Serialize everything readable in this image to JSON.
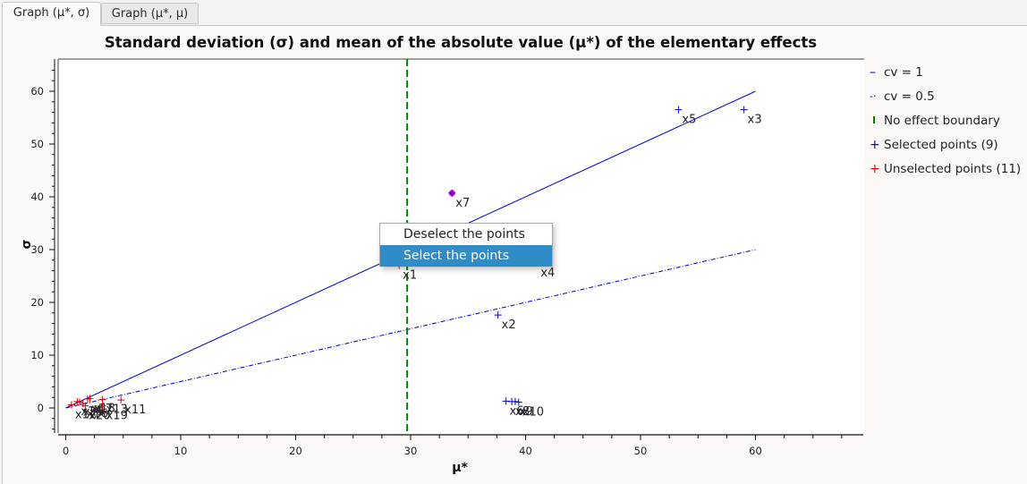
{
  "tabs": [
    {
      "label": "Graph (μ*, σ)",
      "active": true
    },
    {
      "label": "Graph (μ*, μ)",
      "active": false
    }
  ],
  "context_menu": {
    "items": [
      {
        "label": "Deselect the points",
        "highlighted": false
      },
      {
        "label": "Select the points",
        "highlighted": true
      }
    ]
  },
  "legend": [
    {
      "symbol": "–",
      "label": "cv = 1",
      "color": "#0000cc"
    },
    {
      "symbol": "-·",
      "label": "cv = 0.5",
      "color": "#0000cc"
    },
    {
      "symbol": "I",
      "label": "No effect boundary",
      "color": "#008000"
    },
    {
      "symbol": "+",
      "label": "Selected points (9)",
      "color": "#0000cc"
    },
    {
      "symbol": "+",
      "label": "Unselected points (11)",
      "color": "#dd0000"
    }
  ],
  "colors": {
    "selected": "#0000cc",
    "unselected": "#dd0000",
    "boundary": "#008000",
    "highlight": "#dd00dd",
    "menu_highlight": "#308cc6"
  },
  "chart_data": {
    "type": "scatter",
    "title": "Standard deviation (σ) and mean of the absolute value (μ*) of the elementary effects",
    "xlabel": "μ*",
    "ylabel": "σ",
    "xlim": [
      -1,
      69
    ],
    "ylim": [
      -5,
      66
    ],
    "xticks": [
      0,
      10,
      20,
      30,
      40,
      50,
      60
    ],
    "yticks": [
      0,
      10,
      20,
      30,
      40,
      50,
      60
    ],
    "lines": [
      {
        "name": "cv = 1",
        "x": [
          0,
          60
        ],
        "y": [
          0,
          60
        ],
        "style": "solid"
      },
      {
        "name": "cv = 0.5",
        "x": [
          0,
          60
        ],
        "y": [
          0,
          30
        ],
        "style": "dashdot"
      },
      {
        "name": "No effect boundary",
        "x": [
          29.7,
          29.7
        ],
        "y": [
          -5,
          66
        ],
        "style": "dashed"
      }
    ],
    "series": [
      {
        "name": "Selected points (9)",
        "points": [
          {
            "label": "x5",
            "x": 53.3,
            "y": 56.5
          },
          {
            "label": "x3",
            "x": 59.0,
            "y": 56.5
          },
          {
            "label": "x7",
            "x": 33.6,
            "y": 40.7
          },
          {
            "label": "x4",
            "x": 41.0,
            "y": 27.5
          },
          {
            "label": "x2",
            "x": 37.6,
            "y": 17.6
          },
          {
            "label": "x6",
            "x": 38.3,
            "y": 1.3
          },
          {
            "label": "x8",
            "x": 38.8,
            "y": 1.2
          },
          {
            "label": "x9",
            "x": 39.1,
            "y": 1.2
          },
          {
            "label": "x10",
            "x": 39.4,
            "y": 1.1
          }
        ]
      },
      {
        "name": "Unselected points (11)",
        "points": [
          {
            "label": "x1",
            "x": 29.0,
            "y": 27.0
          },
          {
            "label": "x11",
            "x": 4.8,
            "y": 1.5
          },
          {
            "label": "x12",
            "x": 0.5,
            "y": 0.6
          },
          {
            "label": "x13",
            "x": 3.2,
            "y": 1.6
          },
          {
            "label": "x14",
            "x": 1.0,
            "y": 1.2
          },
          {
            "label": "x15",
            "x": 1.2,
            "y": 1.1
          },
          {
            "label": "x16",
            "x": 1.5,
            "y": 0.8
          },
          {
            "label": "x17",
            "x": 1.9,
            "y": 1.7
          },
          {
            "label": "x18",
            "x": 2.1,
            "y": 1.8
          },
          {
            "label": "x19",
            "x": 3.2,
            "y": 0.4
          },
          {
            "label": "x20",
            "x": 1.7,
            "y": 0.4
          }
        ]
      }
    ],
    "highlighted_point": "x7",
    "legend_position": "right",
    "grid": false
  }
}
